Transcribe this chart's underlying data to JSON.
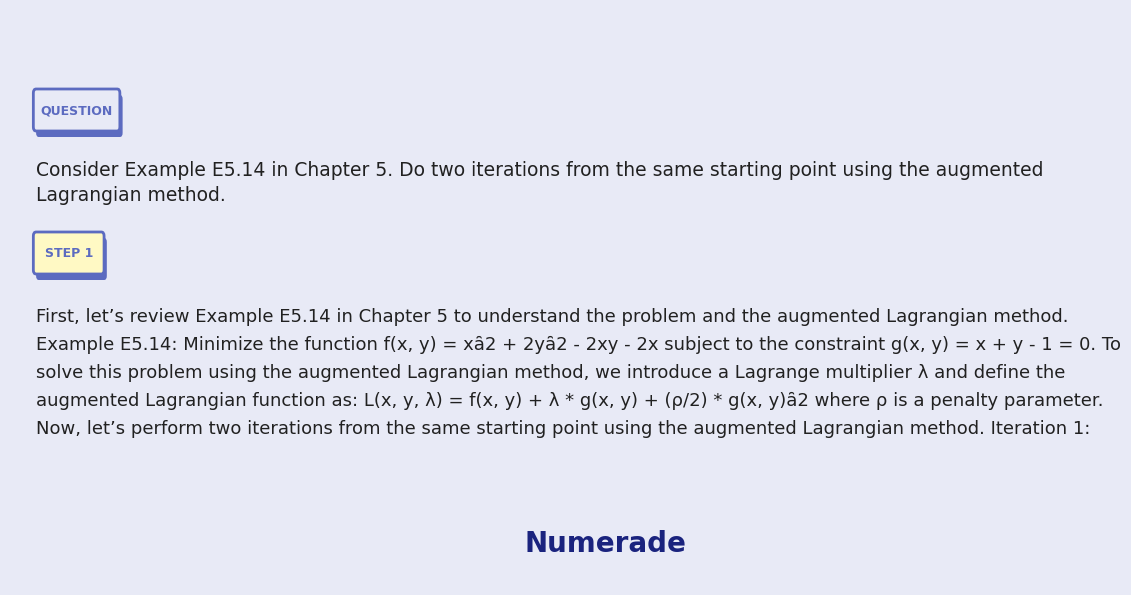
{
  "background_color": "#e8eaf6",
  "question_label": "QUESTION",
  "question_label_color": "#5c6bc0",
  "question_label_bg": "#e8eaf6",
  "question_label_border": "#5c6bc0",
  "question_text_line1": "Consider Example E5.14 in Chapter 5. Do two iterations from the same starting point using the augmented",
  "question_text_line2": "Lagrangian method.",
  "step_label": "STEP 1",
  "step_label_color": "#5c6bc0",
  "step_label_bg": "#fff9c4",
  "step_label_border": "#5c6bc0",
  "body_line1": "First, let’s review Example E5.14 in Chapter 5 to understand the problem and the augmented Lagrangian method.",
  "body_line2": "Example E5.14: Minimize the function f(x, y) = xȃ2 + 2yȃ2 - 2xy - 2x subject to the constraint g(x, y) = x + y - 1 = 0. To",
  "body_line3": "solve this problem using the augmented Lagrangian method, we introduce a Lagrange multiplier λ and define the",
  "body_line4": "augmented Lagrangian function as: L(x, y, λ) = f(x, y) + λ * g(x, y) + (ρ/2) * g(x, y)ȃ2 where ρ is a penalty parameter.",
  "body_line5": "Now, let’s perform two iterations from the same starting point using the augmented Lagrangian method. Iteration 1:",
  "numerade_text": "Numerade",
  "numerade_color": "#1a237e",
  "text_color": "#212121",
  "font_size_label": 9,
  "font_size_question": 13.5,
  "font_size_body": 13,
  "font_size_numerade": 20
}
